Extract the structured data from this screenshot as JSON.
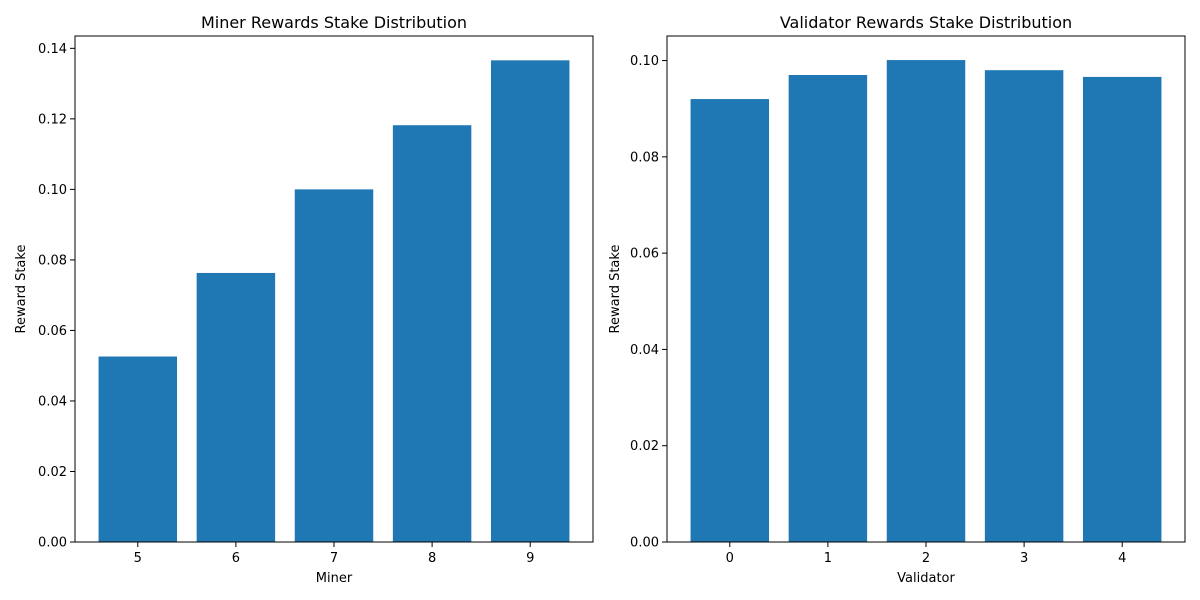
{
  "chart_data": [
    {
      "type": "bar",
      "title": "Miner Rewards Stake Distribution",
      "xlabel": "Miner",
      "ylabel": "Reward Stake",
      "categories": [
        "5",
        "6",
        "7",
        "8",
        "9"
      ],
      "values": [
        0.0526,
        0.0763,
        0.1,
        0.1182,
        0.1366
      ],
      "ylim": [
        0,
        0.1435
      ],
      "yticks": [
        0.0,
        0.02,
        0.04,
        0.06,
        0.08,
        0.1,
        0.12,
        0.14
      ],
      "ytick_labels": [
        "0.00",
        "0.02",
        "0.04",
        "0.06",
        "0.08",
        "0.10",
        "0.12",
        "0.14"
      ],
      "bar_color": "#1f77b4",
      "grid": false
    },
    {
      "type": "bar",
      "title": "Validator Rewards Stake Distribution",
      "xlabel": "Validator",
      "ylabel": "Reward Stake",
      "categories": [
        "0",
        "1",
        "2",
        "3",
        "4"
      ],
      "values": [
        0.092,
        0.097,
        0.1001,
        0.098,
        0.0966
      ],
      "ylim": [
        0,
        0.1051
      ],
      "yticks": [
        0.0,
        0.02,
        0.04,
        0.06,
        0.08,
        0.1
      ],
      "ytick_labels": [
        "0.00",
        "0.02",
        "0.04",
        "0.06",
        "0.08",
        "0.10"
      ],
      "bar_color": "#1f77b4",
      "grid": false
    }
  ]
}
